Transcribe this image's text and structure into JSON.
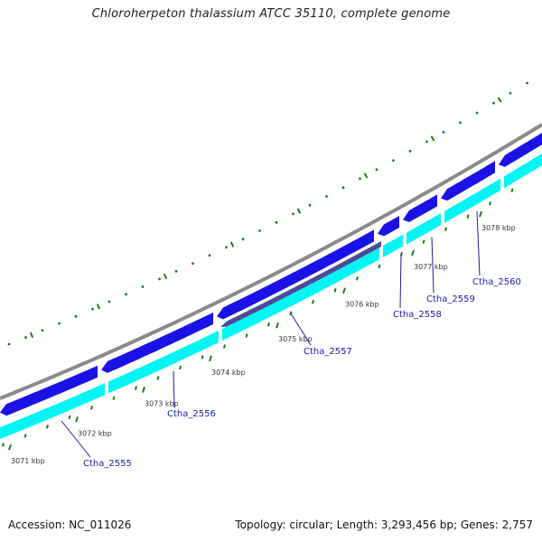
{
  "title": "Chloroherpeton thalassium ATCC 35110, complete genome",
  "accession": "Accession: NC_011026",
  "summary": "Topology: circular; Length: 3,293,456 bp; Genes: 2,757",
  "colors": {
    "backbone": "#8a8a8a",
    "forward_cds": "#1a12e6",
    "reverse_cds": "#00f5f5",
    "rna_feature": "#4a4a98",
    "ticks": "#1f7a1f",
    "gene_label": "#1a1aa8"
  },
  "ticks": [
    {
      "label": "3071 kbp"
    },
    {
      "label": "3072 kbp"
    },
    {
      "label": "3073 kbp"
    },
    {
      "label": "3074 kbp"
    },
    {
      "label": "3075 kbp"
    },
    {
      "label": "3076 kbp"
    },
    {
      "label": "3077 kbp"
    },
    {
      "label": "3078 kbp"
    }
  ],
  "genes": [
    {
      "label": "Ctha_2555"
    },
    {
      "label": "Ctha_2556"
    },
    {
      "label": "Ctha_2557"
    },
    {
      "label": "Ctha_2558"
    },
    {
      "label": "Ctha_2559"
    },
    {
      "label": "Ctha_2560"
    }
  ]
}
